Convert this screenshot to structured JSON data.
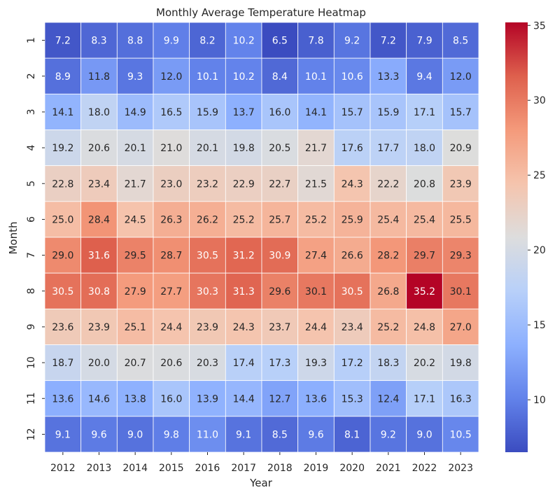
{
  "chart_data": {
    "type": "heatmap",
    "title": "Monthly Average Temperature Heatmap",
    "xlabel": "Year",
    "ylabel": "Month",
    "x": [
      "2012",
      "2013",
      "2014",
      "2015",
      "2016",
      "2017",
      "2018",
      "2019",
      "2020",
      "2021",
      "2022",
      "2023"
    ],
    "y": [
      "1",
      "2",
      "3",
      "4",
      "5",
      "6",
      "7",
      "8",
      "9",
      "10",
      "11",
      "12"
    ],
    "values": [
      [
        7.2,
        8.3,
        8.8,
        9.9,
        8.2,
        10.2,
        6.5,
        7.8,
        9.2,
        7.2,
        7.9,
        8.5
      ],
      [
        8.9,
        11.8,
        9.3,
        12.0,
        10.1,
        10.2,
        8.4,
        10.1,
        10.6,
        13.3,
        9.4,
        12.0
      ],
      [
        14.1,
        18.0,
        14.9,
        16.5,
        15.9,
        13.7,
        16.0,
        14.1,
        15.7,
        15.9,
        17.1,
        15.7
      ],
      [
        19.2,
        20.6,
        20.1,
        21.0,
        20.1,
        19.8,
        20.5,
        21.7,
        17.6,
        17.7,
        18.0,
        20.9
      ],
      [
        22.8,
        23.4,
        21.7,
        23.0,
        23.2,
        22.9,
        22.7,
        21.5,
        24.3,
        22.2,
        20.8,
        23.9
      ],
      [
        25.0,
        28.4,
        24.5,
        26.3,
        26.2,
        25.2,
        25.7,
        25.2,
        25.9,
        25.4,
        25.4,
        25.5
      ],
      [
        29.0,
        31.6,
        29.5,
        28.7,
        30.5,
        31.2,
        30.9,
        27.4,
        26.6,
        28.2,
        29.7,
        29.3
      ],
      [
        30.5,
        30.8,
        27.9,
        27.7,
        30.3,
        31.3,
        29.6,
        30.1,
        30.5,
        26.8,
        35.2,
        30.1
      ],
      [
        23.6,
        23.9,
        25.1,
        24.4,
        23.9,
        24.3,
        23.7,
        24.4,
        23.4,
        25.2,
        24.8,
        27.0
      ],
      [
        18.7,
        20.0,
        20.7,
        20.6,
        20.3,
        17.4,
        17.3,
        19.3,
        17.2,
        18.3,
        20.2,
        19.8
      ],
      [
        13.6,
        14.6,
        13.8,
        16.0,
        13.9,
        14.4,
        12.7,
        13.6,
        15.3,
        12.4,
        17.1,
        16.3
      ],
      [
        9.1,
        9.6,
        9.0,
        9.8,
        11.0,
        9.1,
        8.5,
        9.6,
        8.1,
        9.2,
        9.0,
        10.5
      ]
    ],
    "colorbar": {
      "ticks": [
        10,
        15,
        20,
        25,
        30,
        35
      ],
      "range": [
        6.5,
        35.2
      ],
      "colormap": "coolwarm"
    },
    "annotations": true,
    "legend": "colorbar-right"
  }
}
